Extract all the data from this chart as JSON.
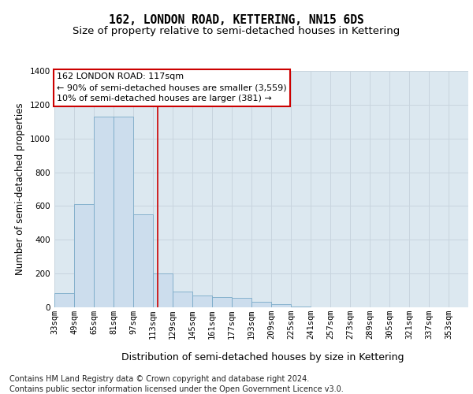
{
  "title": "162, LONDON ROAD, KETTERING, NN15 6DS",
  "subtitle": "Size of property relative to semi-detached houses in Kettering",
  "xlabel": "Distribution of semi-detached houses by size in Kettering",
  "ylabel": "Number of semi-detached properties",
  "footer_line1": "Contains HM Land Registry data © Crown copyright and database right 2024.",
  "footer_line2": "Contains public sector information licensed under the Open Government Licence v3.0.",
  "annotation_line1": "162 LONDON ROAD: 117sqm",
  "annotation_line2": "← 90% of semi-detached houses are smaller (3,559)",
  "annotation_line3": "10% of semi-detached houses are larger (381) →",
  "bar_left_edges": [
    33,
    49,
    65,
    81,
    97,
    113,
    129,
    145,
    161,
    177,
    193,
    209,
    225,
    241,
    257,
    273,
    289,
    305,
    321,
    337
  ],
  "bar_heights": [
    85,
    610,
    1130,
    1130,
    550,
    200,
    95,
    70,
    60,
    55,
    35,
    20,
    5,
    0,
    0,
    0,
    0,
    0,
    0,
    0
  ],
  "bin_width": 16,
  "bar_color": "#ccdded",
  "bar_edge_color": "#7aaac8",
  "vline_color": "#cc0000",
  "vline_x": 117,
  "grid_color": "#c8d4de",
  "background_color": "#dce8f0",
  "ylim": [
    0,
    1400
  ],
  "yticks": [
    0,
    200,
    400,
    600,
    800,
    1000,
    1200,
    1400
  ],
  "xlim_min": 33,
  "xlim_max": 369,
  "xtick_positions": [
    33,
    49,
    65,
    81,
    97,
    113,
    129,
    145,
    161,
    177,
    193,
    209,
    225,
    241,
    257,
    273,
    289,
    305,
    321,
    337,
    353
  ],
  "xtick_labels": [
    "33sqm",
    "49sqm",
    "65sqm",
    "81sqm",
    "97sqm",
    "113sqm",
    "129sqm",
    "145sqm",
    "161sqm",
    "177sqm",
    "193sqm",
    "209sqm",
    "225sqm",
    "241sqm",
    "257sqm",
    "273sqm",
    "289sqm",
    "305sqm",
    "321sqm",
    "337sqm",
    "353sqm"
  ],
  "title_fontsize": 10.5,
  "subtitle_fontsize": 9.5,
  "ylabel_fontsize": 8.5,
  "xlabel_fontsize": 9,
  "tick_fontsize": 7.5,
  "footer_fontsize": 7,
  "annotation_fontsize": 8
}
